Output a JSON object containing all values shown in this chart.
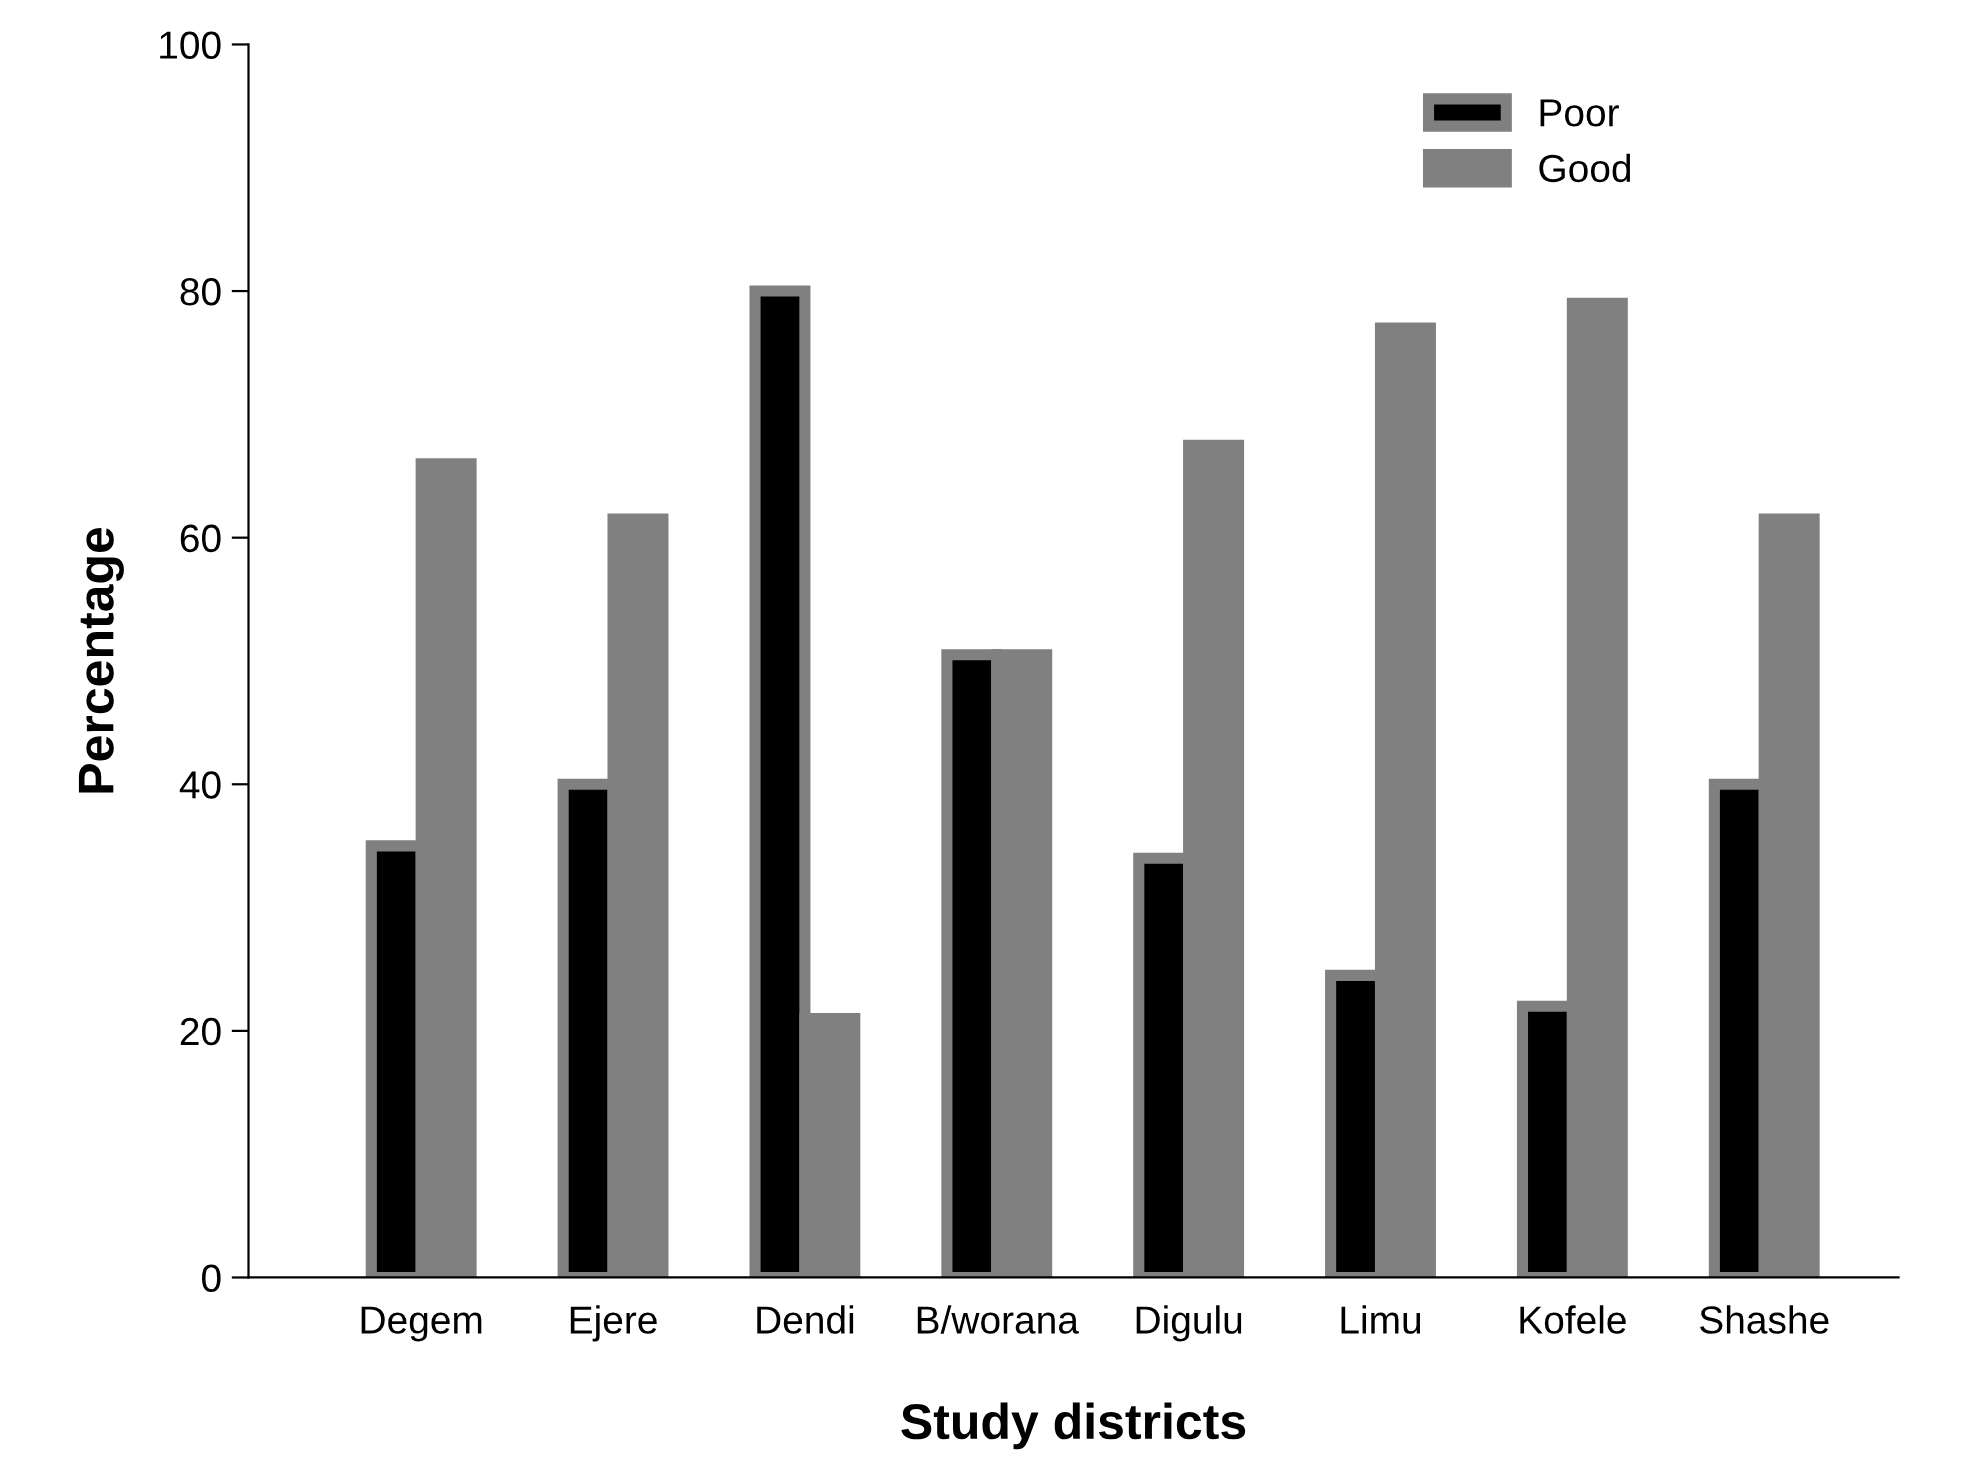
{
  "chart_data": {
    "type": "bar",
    "xlabel": "Study districts",
    "ylabel": "Percentage",
    "categories": [
      "Degem",
      "Ejere",
      "Dendi",
      "B/worana",
      "Digulu",
      "Limu",
      "Kofele",
      "Shashe"
    ],
    "series": [
      {
        "name": "Poor",
        "color": "#000000",
        "values": [
          35,
          40,
          80,
          50.5,
          34,
          24.5,
          22,
          40
        ]
      },
      {
        "name": "Good",
        "color": "#808080",
        "values": [
          66,
          61.5,
          21,
          50.5,
          67.5,
          77,
          79,
          61.5
        ]
      }
    ],
    "ylim": [
      0,
      100
    ],
    "yticks": [
      0,
      20,
      40,
      60,
      80,
      100
    ],
    "grid": false,
    "legend": "top right"
  }
}
